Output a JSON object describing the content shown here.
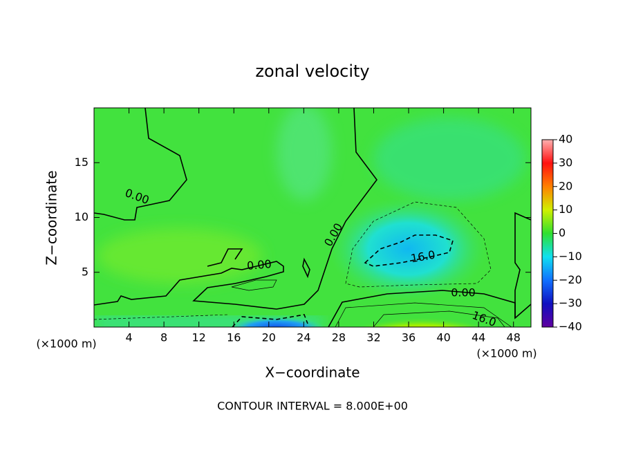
{
  "chart_data": {
    "type": "contour",
    "title": "zonal velocity",
    "x_label": "X−coordinate",
    "y_label": "Z−coordinate",
    "unit_labels": [
      "(×1000 m)",
      "(×1000 m)"
    ],
    "xlim": [
      0,
      50
    ],
    "xticks": [
      4,
      8,
      12,
      16,
      20,
      24,
      28,
      32,
      36,
      40,
      44,
      48
    ],
    "ylim": [
      0,
      20
    ],
    "yticks": [
      5,
      10,
      15
    ],
    "colorbar": {
      "lim": [
        -40,
        40
      ],
      "ticks": [
        {
          "value": -40,
          "label": "−40"
        },
        {
          "value": -30,
          "label": "−30"
        },
        {
          "value": -20,
          "label": "−20"
        },
        {
          "value": -10,
          "label": "−10"
        },
        0,
        10,
        20,
        30,
        40
      ]
    },
    "contour_labels": [
      "0.00",
      "0.00",
      "0.00",
      "0.00",
      "16.0",
      "16.0"
    ],
    "footnote": "CONTOUR INTERVAL = 8.000E+00"
  }
}
